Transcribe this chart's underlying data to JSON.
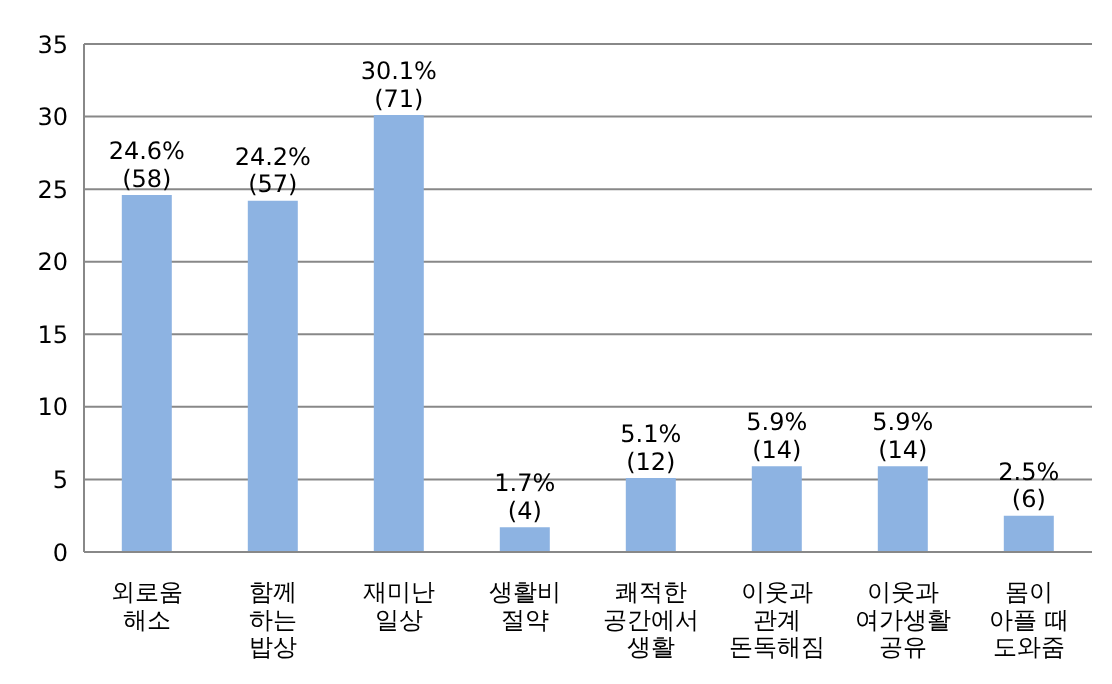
{
  "chart_data": {
    "type": "bar",
    "categories": [
      "외로움\n해소",
      "함께\n하는\n밥상",
      "재미난\n일상",
      "생활비\n절약",
      "쾌적한\n공간에서\n생활",
      "이웃과\n관계\n돈독해짐",
      "이웃과\n여가생활\n공유",
      "몸이\n아플 때\n도와줌"
    ],
    "values": [
      24.6,
      24.2,
      30.1,
      1.7,
      5.1,
      5.9,
      5.9,
      2.5
    ],
    "value_labels": [
      "24.6%\n(58)",
      "24.2%\n(57)",
      "30.1%\n(71)",
      "1.7%\n(4)",
      "5.1%\n(12)",
      "5.9%\n(14)",
      "5.9%\n(14)",
      "2.5%\n(6)"
    ],
    "color": "#8db3e2",
    "ylim": [
      0,
      35
    ],
    "yticks": [
      0,
      5,
      10,
      15,
      20,
      25,
      30,
      35
    ],
    "grid": "y"
  }
}
